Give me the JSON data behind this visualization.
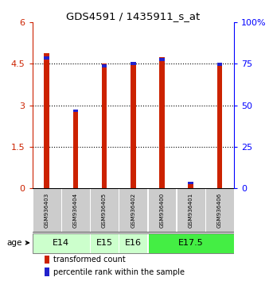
{
  "title": "GDS4591 / 1435911_s_at",
  "samples": [
    "GSM936403",
    "GSM936404",
    "GSM936405",
    "GSM936402",
    "GSM936400",
    "GSM936401",
    "GSM936406"
  ],
  "red_values": [
    4.9,
    2.85,
    4.5,
    4.57,
    4.73,
    0.22,
    4.55
  ],
  "blue_heights": [
    0.12,
    0.1,
    0.1,
    0.1,
    0.12,
    0.09,
    0.1
  ],
  "blue_bottoms": [
    4.65,
    2.75,
    4.38,
    4.47,
    4.6,
    0.13,
    4.44
  ],
  "ylim_left": [
    0,
    6
  ],
  "ylim_right": [
    0,
    100
  ],
  "yticks_left": [
    0,
    1.5,
    3.0,
    4.5,
    6.0
  ],
  "yticks_right": [
    0,
    25,
    50,
    75,
    100
  ],
  "ytick_labels_left": [
    "0",
    "1.5",
    "3",
    "4.5",
    "6"
  ],
  "ytick_labels_right": [
    "0",
    "25",
    "50",
    "75",
    "100%"
  ],
  "age_groups": [
    {
      "label": "E14",
      "samples": [
        0,
        1
      ],
      "color": "#ccffcc"
    },
    {
      "label": "E15",
      "samples": [
        2
      ],
      "color": "#ccffcc"
    },
    {
      "label": "E16",
      "samples": [
        3
      ],
      "color": "#ccffcc"
    },
    {
      "label": "E17.5",
      "samples": [
        4,
        5,
        6
      ],
      "color": "#44ee44"
    }
  ],
  "bar_width": 0.18,
  "red_color": "#cc2200",
  "blue_color": "#2222cc",
  "sample_box_color": "#cccccc",
  "legend_items": [
    "transformed count",
    "percentile rank within the sample"
  ],
  "legend_colors": [
    "#cc2200",
    "#2222cc"
  ],
  "grid_lines": [
    1.5,
    3.0,
    4.5
  ]
}
